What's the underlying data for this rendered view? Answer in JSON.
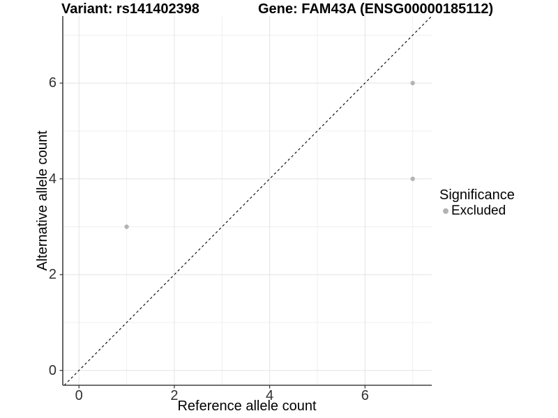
{
  "chart_data": {
    "type": "scatter",
    "title_left": "Variant: rs141402398",
    "title_right": "Gene: FAM43A (ENSG00000185112)",
    "xlabel": "Reference allele count",
    "ylabel": "Alternative allele count",
    "xlim": [
      -0.34,
      7.4
    ],
    "ylim": [
      -0.31,
      7.4
    ],
    "x_major_ticks": [
      0,
      2,
      4,
      6
    ],
    "y_major_ticks": [
      0,
      2,
      4,
      6
    ],
    "x_minor_ticks": [
      1,
      3,
      5,
      7
    ],
    "y_minor_ticks": [
      1,
      3,
      5,
      7
    ],
    "grid": true,
    "points": [
      {
        "x": 1,
        "y": 3,
        "significance": "Excluded"
      },
      {
        "x": 7,
        "y": 6,
        "significance": "Excluded"
      },
      {
        "x": 7,
        "y": 4,
        "significance": "Excluded"
      }
    ],
    "abline": {
      "slope": 1,
      "intercept": 0,
      "style": "dashed",
      "color": "#000000"
    },
    "legend": {
      "title": "Significance",
      "position": "right",
      "items": [
        {
          "label": "Excluded",
          "color": "#b3b3b3"
        }
      ]
    },
    "colors": {
      "point": "#b3b3b3",
      "grid_major": "#e3e3e3",
      "grid_minor": "#efefef",
      "axis_line": "#404040",
      "tick_mark": "#333333",
      "tick_text": "#303030",
      "title_text": "#000000",
      "background": "#ffffff"
    }
  }
}
